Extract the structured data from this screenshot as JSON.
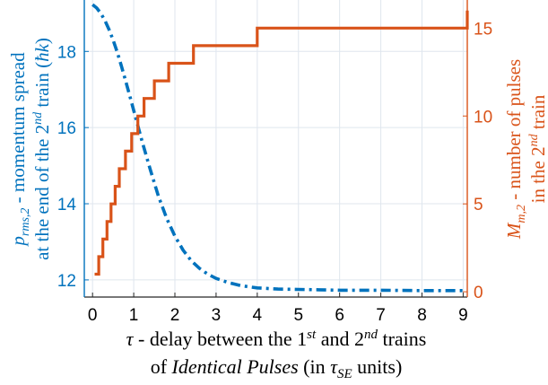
{
  "chart_data": {
    "type": "line",
    "xlabel": {
      "line1_parts": [
        {
          "t": "τ",
          "style": "italic",
          "sup": false
        },
        {
          "t": " - delay between the 1",
          "style": "normal",
          "sup": false
        },
        {
          "t": "st",
          "style": "italic",
          "sup": true
        },
        {
          "t": " and 2",
          "style": "normal",
          "sup": false
        },
        {
          "t": "nd",
          "style": "italic",
          "sup": true
        },
        {
          "t": " trains",
          "style": "normal",
          "sup": false
        }
      ],
      "line2_parts": [
        {
          "t": "of ",
          "style": "normal",
          "sup": false,
          "sub": false
        },
        {
          "t": "Identical Pulses",
          "style": "italic",
          "sup": false,
          "sub": false
        },
        {
          "t": " (in ",
          "style": "normal",
          "sup": false,
          "sub": false
        },
        {
          "t": "τ",
          "style": "italic",
          "sup": false,
          "sub": false
        },
        {
          "t": "SE",
          "style": "italic",
          "sup": false,
          "sub": true
        },
        {
          "t": " units)",
          "style": "normal",
          "sup": false,
          "sub": false
        }
      ]
    },
    "ylabel_left": {
      "line1_parts": [
        {
          "t": "p",
          "style": "italic",
          "sub": false,
          "sup": false
        },
        {
          "t": "rms,2",
          "style": "italic",
          "sub": true,
          "sup": false
        },
        {
          "t": " - momentum spread",
          "style": "normal",
          "sub": false,
          "sup": false
        }
      ],
      "line2_parts": [
        {
          "t": "at the end of the 2",
          "style": "normal",
          "sub": false,
          "sup": false
        },
        {
          "t": "nd",
          "style": "italic",
          "sub": false,
          "sup": true
        },
        {
          "t": " train (",
          "style": "normal",
          "sub": false,
          "sup": false
        },
        {
          "t": "ħk",
          "style": "italic",
          "sub": false,
          "sup": false
        },
        {
          "t": ")",
          "style": "normal",
          "sub": false,
          "sup": false
        }
      ]
    },
    "ylabel_right": {
      "line1_parts": [
        {
          "t": "M",
          "style": "italic",
          "sub": false,
          "sup": false
        },
        {
          "t": "m,2",
          "style": "italic",
          "sub": true,
          "sup": false
        },
        {
          "t": " - number of pulses",
          "style": "normal",
          "sub": false,
          "sup": false
        }
      ],
      "line2_parts": [
        {
          "t": "in the 2",
          "style": "normal",
          "sub": false,
          "sup": false
        },
        {
          "t": "nd",
          "style": "italic",
          "sub": false,
          "sup": true
        },
        {
          "t": " train",
          "style": "normal",
          "sub": false,
          "sup": false
        }
      ]
    },
    "x_ticks": [
      "0",
      "1",
      "2",
      "3",
      "4",
      "5",
      "6",
      "7",
      "8",
      "9"
    ],
    "y_left_ticks": [
      "12",
      "14",
      "16",
      "18"
    ],
    "y_right_ticks": [
      "0",
      "5",
      "10",
      "15"
    ],
    "xlim": [
      -0.2,
      9.1
    ],
    "ylim_left": [
      11.55,
      19.35
    ],
    "ylim_right": [
      -0.3,
      16.6
    ],
    "grid": true,
    "colors": {
      "left": "#0072BD",
      "right": "#D95319",
      "grid": "#dfe6ee",
      "text": "#000000"
    },
    "series": [
      {
        "axis": "left",
        "line_style": "dash-dot",
        "x": [
          0,
          0.1,
          0.2,
          0.3,
          0.4,
          0.5,
          0.6,
          0.7,
          0.8,
          0.9,
          1.0,
          1.2,
          1.4,
          1.6,
          1.8,
          2.0,
          2.2,
          2.4,
          2.6,
          2.8,
          3.0,
          3.3,
          3.6,
          4.0,
          4.5,
          5.0,
          5.5,
          6.0,
          7.0,
          8.0,
          9.0
        ],
        "values": [
          19.23,
          19.14,
          19.0,
          18.81,
          18.58,
          18.3,
          17.98,
          17.62,
          17.24,
          16.85,
          16.45,
          15.65,
          14.9,
          14.2,
          13.62,
          13.15,
          12.78,
          12.5,
          12.3,
          12.15,
          12.04,
          11.93,
          11.85,
          11.79,
          11.76,
          11.75,
          11.74,
          11.73,
          11.73,
          11.72,
          11.72
        ]
      },
      {
        "axis": "right",
        "line_style": "step",
        "x": [
          0.05,
          0.15,
          0.25,
          0.35,
          0.45,
          0.55,
          0.65,
          0.8,
          0.95,
          1.1,
          1.25,
          1.5,
          1.85,
          2.45,
          4.0,
          9.1
        ],
        "values": [
          1,
          2,
          3,
          4,
          5,
          6,
          7,
          8,
          9,
          10,
          11,
          12,
          13,
          14,
          15,
          16
        ]
      }
    ]
  }
}
